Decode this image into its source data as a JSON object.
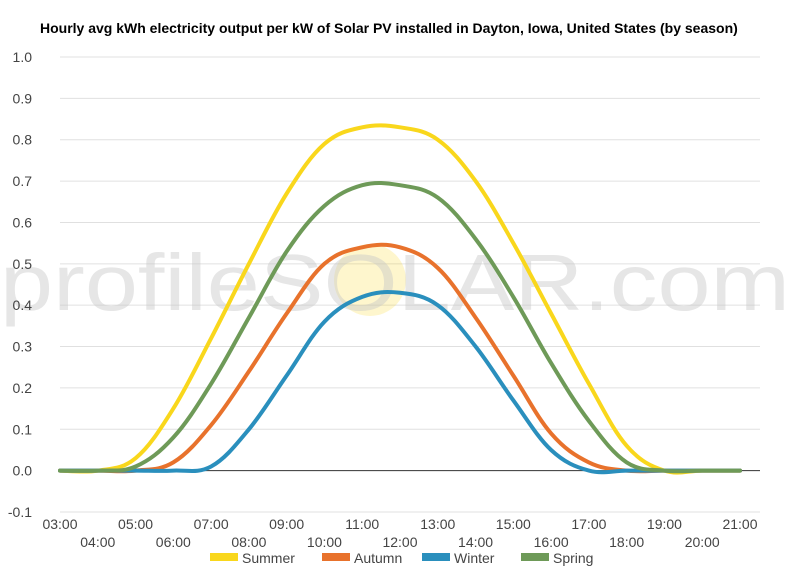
{
  "chart_data": {
    "type": "line",
    "title": "Hourly avg kWh electricity output per kW of Solar PV installed in Dayton, Iowa, United States (by season)",
    "xlabel": "",
    "ylabel": "",
    "ylim": [
      -0.1,
      1.0
    ],
    "yticks": [
      "-0.1",
      "0.0",
      "0.1",
      "0.2",
      "0.3",
      "0.4",
      "0.5",
      "0.6",
      "0.7",
      "0.8",
      "0.9",
      "1.0"
    ],
    "x": [
      "03:00",
      "04:00",
      "05:00",
      "06:00",
      "07:00",
      "08:00",
      "09:00",
      "10:00",
      "11:00",
      "12:00",
      "13:00",
      "14:00",
      "15:00",
      "16:00",
      "17:00",
      "18:00",
      "19:00",
      "20:00",
      "21:00"
    ],
    "grid": true,
    "legend": "bottom",
    "series": [
      {
        "name": "Summer",
        "color": "#f9d71c",
        "values": [
          0.0,
          0.0,
          0.03,
          0.15,
          0.32,
          0.5,
          0.67,
          0.79,
          0.83,
          0.83,
          0.8,
          0.7,
          0.55,
          0.38,
          0.21,
          0.06,
          0.0,
          0.0,
          0.0
        ]
      },
      {
        "name": "Autumn",
        "color": "#e8722c",
        "values": [
          0.0,
          0.0,
          0.0,
          0.02,
          0.11,
          0.24,
          0.38,
          0.5,
          0.54,
          0.54,
          0.49,
          0.37,
          0.23,
          0.09,
          0.02,
          0.0,
          0.0,
          0.0,
          0.0
        ]
      },
      {
        "name": "Winter",
        "color": "#2a8fbd",
        "values": [
          0.0,
          0.0,
          0.0,
          0.0,
          0.01,
          0.1,
          0.23,
          0.36,
          0.42,
          0.43,
          0.4,
          0.3,
          0.17,
          0.05,
          0.0,
          0.0,
          0.0,
          0.0,
          0.0
        ]
      },
      {
        "name": "Spring",
        "color": "#6e9a58",
        "values": [
          0.0,
          0.0,
          0.01,
          0.08,
          0.21,
          0.37,
          0.53,
          0.64,
          0.69,
          0.69,
          0.66,
          0.56,
          0.42,
          0.26,
          0.12,
          0.02,
          0.0,
          0.0,
          0.0
        ]
      }
    ]
  },
  "watermark": "profileSOLAR.com"
}
